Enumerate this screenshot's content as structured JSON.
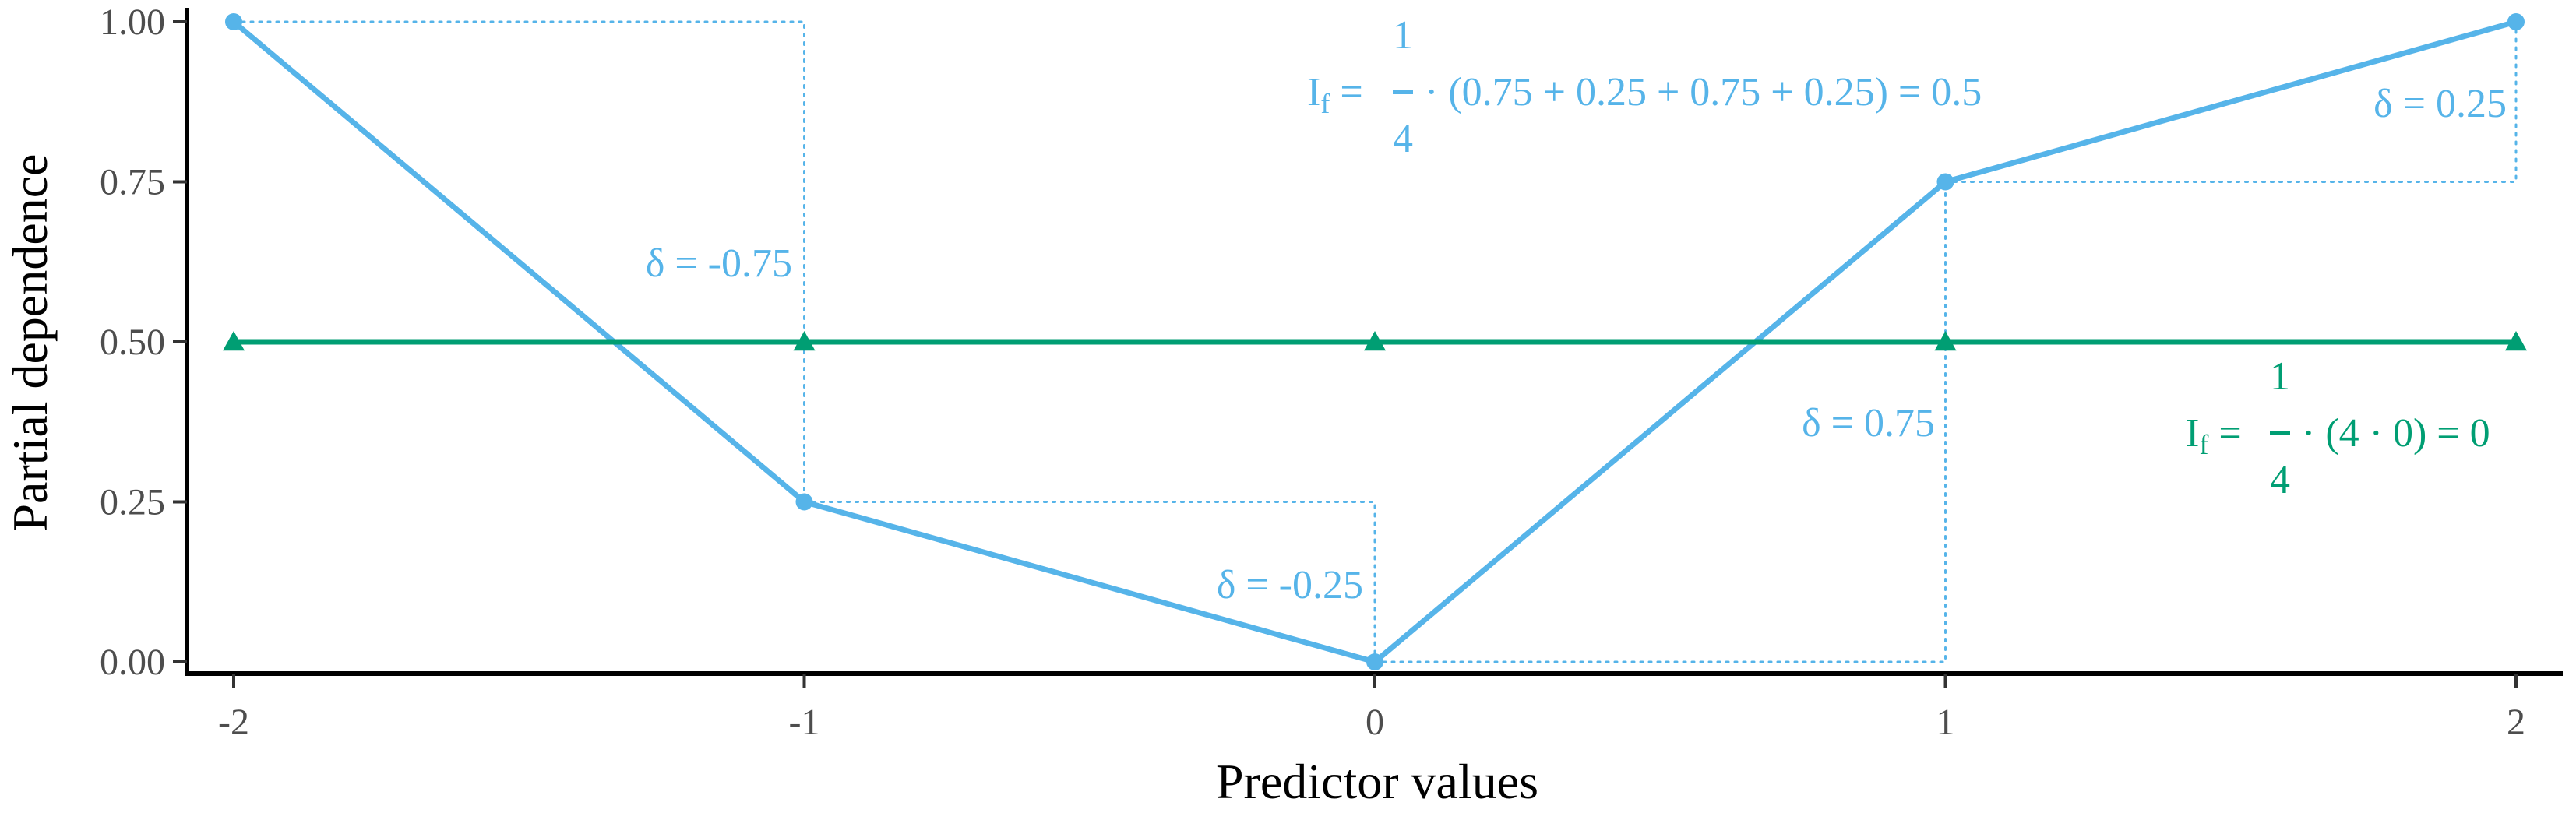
{
  "chart_data": {
    "type": "line",
    "title": "",
    "xlabel": "Predictor values",
    "ylabel": "Partial dependence",
    "x": [
      -2,
      -1,
      0,
      1,
      2
    ],
    "xlim": [
      -2,
      2
    ],
    "ylim": [
      0,
      1
    ],
    "x_tick_labels": [
      "-2",
      "-1",
      "0",
      "1",
      "2"
    ],
    "y_ticks": [
      0,
      0.25,
      0.5,
      0.75,
      1.0
    ],
    "y_tick_labels": [
      "0.00",
      "0.25",
      "0.50",
      "0.75",
      "1.00"
    ],
    "grid": false,
    "series": [
      {
        "id": "blue",
        "color": "#56B4E9",
        "marker": "circle",
        "values": [
          1.0,
          0.25,
          0.0,
          0.75,
          1.0
        ]
      },
      {
        "id": "green",
        "color": "#009E73",
        "marker": "triangle",
        "values": [
          0.5,
          0.5,
          0.5,
          0.5,
          0.5
        ]
      }
    ],
    "annotations": {
      "deltas": [
        {
          "text": "δ = -0.75",
          "color": "#56B4E9"
        },
        {
          "text": "δ = -0.25",
          "color": "#56B4E9"
        },
        {
          "text": "δ = 0.75",
          "color": "#56B4E9"
        },
        {
          "text": "δ = 0.25",
          "color": "#56B4E9"
        }
      ],
      "blue_formula": {
        "lhs": "I",
        "sub": "f",
        "eq": " =",
        "numerator": "1",
        "denominator": "4",
        "rest": "· (0.75 + 0.25 + 0.75 + 0.25) = 0.5",
        "color": "#56B4E9"
      },
      "green_formula": {
        "lhs": "I",
        "sub": "f",
        "eq": " =",
        "numerator": "1",
        "denominator": "4",
        "rest": "· (4 · 0) = 0",
        "color": "#009E73"
      }
    }
  }
}
